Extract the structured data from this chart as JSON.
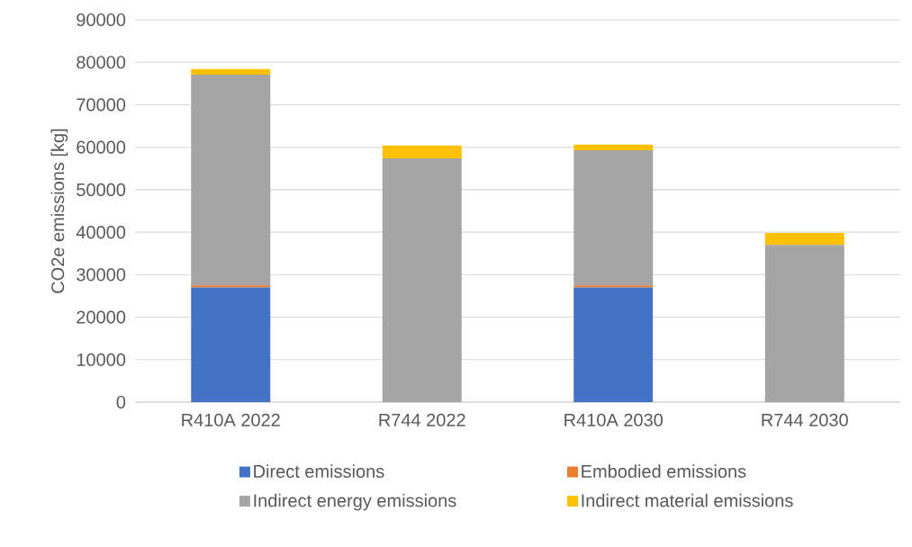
{
  "chart_data": {
    "type": "bar",
    "stacked": true,
    "ylabel": "CO2e emissions [kg]",
    "categories": [
      "R410A 2022",
      "R744 2022",
      "R410A 2030",
      "R744 2030"
    ],
    "series": [
      {
        "name": "Direct emissions",
        "color": "#4472c4",
        "values": [
          27000,
          0,
          27000,
          0
        ]
      },
      {
        "name": "Embodied emissions",
        "color": "#ed7d31",
        "values": [
          500,
          0,
          500,
          0
        ]
      },
      {
        "name": "Indirect energy emissions",
        "color": "#a5a5a5",
        "values": [
          49600,
          57400,
          31800,
          37000
        ]
      },
      {
        "name": "Indirect material emissions",
        "color": "#ffc000",
        "values": [
          1300,
          3000,
          1300,
          2800
        ]
      }
    ],
    "ylim": [
      0,
      90000
    ],
    "yticks": [
      0,
      10000,
      20000,
      30000,
      40000,
      50000,
      60000,
      70000,
      80000,
      90000
    ],
    "grid": "y",
    "legend": "bottom"
  }
}
